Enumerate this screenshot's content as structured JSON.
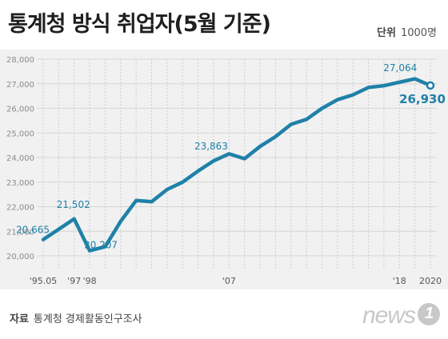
{
  "header": {
    "title": "통계청 방식 취업자(5월 기준)",
    "unit_label": "단위",
    "unit_value": "1000명"
  },
  "footer": {
    "source_label": "자료",
    "source_value": "통계청 경제활동인구조사",
    "logo_text": "news"
  },
  "chart_data": {
    "type": "line",
    "title": "통계청 방식 취업자(5월 기준)",
    "xlabel": "",
    "ylabel": "",
    "ylim": [
      20000,
      28000
    ],
    "y_ticks": [
      20000,
      21000,
      22000,
      23000,
      24000,
      25000,
      26000,
      27000,
      28000
    ],
    "y_tick_labels": [
      "20,000",
      "21,000",
      "22,000",
      "23,000",
      "24,000",
      "25,000",
      "26,000",
      "27,000",
      "28,000"
    ],
    "x": [
      1995,
      1996,
      1997,
      1998,
      1999,
      2000,
      2001,
      2002,
      2003,
      2004,
      2005,
      2006,
      2007,
      2008,
      2009,
      2010,
      2011,
      2012,
      2013,
      2014,
      2015,
      2016,
      2017,
      2018,
      2019,
      2020
    ],
    "x_tick_labels": [
      {
        "x": 1995,
        "label": "'95.05"
      },
      {
        "x": 1997,
        "label": "'97"
      },
      {
        "x": 1998,
        "label": "'98"
      },
      {
        "x": 2007,
        "label": "'07"
      },
      {
        "x": 2018,
        "label": "'18"
      },
      {
        "x": 2020,
        "label": "2020"
      }
    ],
    "series": [
      {
        "values": [
          20665,
          21080,
          21502,
          20207,
          20370,
          21400,
          22250,
          22200,
          22700,
          23000,
          23450,
          23863,
          24150,
          23950,
          24450,
          24850,
          25350,
          25550,
          26000,
          26350,
          26550,
          26850,
          26920,
          27064,
          27200,
          26930
        ],
        "color": "#1f81a8"
      }
    ],
    "data_labels": [
      {
        "x": 1995,
        "value": 20665,
        "label": "20,665",
        "color": "#1f81a8"
      },
      {
        "x": 1997,
        "value": 21502,
        "label": "21,502",
        "color": "#1f81a8"
      },
      {
        "x": 1998,
        "value": 20207,
        "label": "20,207",
        "color": "#1f81a8"
      },
      {
        "x": 2006,
        "value": 23863,
        "label": "23,863",
        "color": "#1f81a8"
      },
      {
        "x": 2018,
        "value": 27064,
        "label": "27,064",
        "color": "#1f81a8"
      },
      {
        "x": 2020,
        "value": 26930,
        "label": "26,930",
        "color": "#1f81a8"
      }
    ],
    "grid": true,
    "legend": "none"
  }
}
